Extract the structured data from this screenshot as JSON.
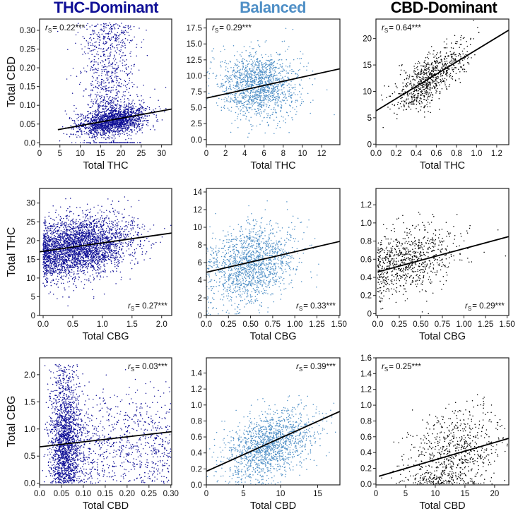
{
  "column_titles": [
    {
      "label": "THC-Dominant",
      "color": "#0f0f96"
    },
    {
      "label": "Balanced",
      "color": "#4f8fc6"
    },
    {
      "label": "CBD-Dominant",
      "color": "#000000"
    }
  ],
  "row_labels": [
    "Total CBD",
    "Total THC",
    "Total CBG"
  ],
  "stat_symbol": "r",
  "stat_subscript": "S",
  "chart_data": [
    {
      "type": "scatter",
      "row": 0,
      "col": 0,
      "xlabel": "Total THC",
      "ylabel": "Total CBD",
      "xlim": [
        0,
        32.5
      ],
      "ylim": [
        -0.005,
        0.33
      ],
      "xticks": [
        "0",
        "5",
        "10",
        "15",
        "20",
        "25",
        "30"
      ],
      "yticks": [
        "0.0",
        "0.05",
        "0.10",
        "0.15",
        "0.20",
        "0.25",
        "0.30"
      ],
      "annotation": "= 0.22***",
      "annotation_position": "top-left",
      "fit_line": [
        [
          4.5,
          0.035
        ],
        [
          32.5,
          0.09
        ]
      ],
      "cloud": {
        "n": 2600,
        "kind": "thc_cbd"
      }
    },
    {
      "type": "scatter",
      "row": 0,
      "col": 1,
      "xlabel": "Total THC",
      "ylabel": "Total CBD",
      "xlim": [
        0,
        13.9
      ],
      "ylim": [
        -0.8,
        18.9
      ],
      "xticks": [
        "0",
        "2",
        "4",
        "6",
        "8",
        "10",
        "12"
      ],
      "yticks": [
        "0.0",
        "2.5",
        "5.0",
        "7.5",
        "10.0",
        "12.5",
        "15.0",
        "17.5"
      ],
      "annotation": "= 0.29***",
      "annotation_position": "top-left",
      "fit_line": [
        [
          0,
          6.5
        ],
        [
          13.9,
          11.1
        ]
      ],
      "cloud": {
        "n": 1500,
        "x_center": 5.5,
        "x_spread": 2.0,
        "y_center": 8.5,
        "y_spread": 2.6
      }
    },
    {
      "type": "scatter",
      "row": 0,
      "col": 2,
      "xlabel": "Total THC",
      "ylabel": "Total CBD",
      "xlim": [
        0,
        1.32
      ],
      "ylim": [
        -0.1,
        23.7
      ],
      "xticks": [
        "0.0",
        "0.2",
        "0.4",
        "0.6",
        "0.8",
        "1.0",
        "1.2"
      ],
      "yticks": [
        "0",
        "5",
        "10",
        "15",
        "20"
      ],
      "annotation": "= 0.64***",
      "annotation_position": "top-left",
      "fit_line": [
        [
          0,
          6.3
        ],
        [
          1.32,
          21.6
        ]
      ],
      "cloud": {
        "n": 800,
        "x_center": 0.55,
        "x_spread": 0.18,
        "y_center": 12.7,
        "y_spread": 2.2,
        "slope": 11.6
      }
    },
    {
      "type": "scatter",
      "row": 1,
      "col": 0,
      "xlabel": "Total CBG",
      "ylabel": "Total THC",
      "xlim": [
        -0.06,
        2.17
      ],
      "ylim": [
        0,
        33.9
      ],
      "xticks": [
        "0.0",
        "0.5",
        "1.0",
        "1.5",
        "2.0"
      ],
      "yticks": [
        "0",
        "5",
        "10",
        "15",
        "20",
        "25",
        "30"
      ],
      "annotation": "= 0.27***",
      "annotation_position": "bottom-right",
      "fit_line": [
        [
          -0.06,
          17
        ],
        [
          2.17,
          22
        ]
      ],
      "cloud": {
        "n": 3200,
        "x_center": 0.6,
        "x_spread": 0.45,
        "y_center": 18.3,
        "y_spread": 4.0,
        "slope": 2.2
      }
    },
    {
      "type": "scatter",
      "row": 1,
      "col": 1,
      "xlabel": "Total CBG",
      "ylabel": "Total THC",
      "xlim": [
        0,
        1.51
      ],
      "ylim": [
        0,
        14.4
      ],
      "xticks": [
        "0.0",
        "0.25",
        "0.50",
        "0.75",
        "1.00",
        "1.25",
        "1.50"
      ],
      "yticks": [
        "0",
        "2",
        "4",
        "6",
        "8",
        "10",
        "12",
        "14"
      ],
      "annotation": "= 0.33***",
      "annotation_position": "bottom-right",
      "fit_line": [
        [
          0,
          4.9
        ],
        [
          1.51,
          8.4
        ]
      ],
      "cloud": {
        "n": 1500,
        "x_center": 0.5,
        "x_spread": 0.25,
        "y_center": 5.8,
        "y_spread": 2.2,
        "slope": 2.0
      }
    },
    {
      "type": "scatter",
      "row": 1,
      "col": 2,
      "xlabel": "Total CBG",
      "ylabel": "Total THC",
      "xlim": [
        -0.02,
        1.52
      ],
      "ylim": [
        -0.02,
        1.38
      ],
      "xticks": [
        "0.0",
        "0.25",
        "0.50",
        "0.75",
        "1.00",
        "1.25",
        "1.50"
      ],
      "yticks": [
        "0",
        "0.2",
        "0.4",
        "0.6",
        "0.8",
        "1.0",
        "1.2"
      ],
      "annotation": "= 0.29***",
      "annotation_position": "bottom-right",
      "fit_line": [
        [
          0,
          0.46
        ],
        [
          1.52,
          0.85
        ]
      ],
      "cloud": {
        "n": 800,
        "x_center": 0.35,
        "x_spread": 0.3,
        "y_center": 0.58,
        "y_spread": 0.18,
        "slope": 0.2
      }
    },
    {
      "type": "scatter",
      "row": 2,
      "col": 0,
      "xlabel": "Total CBD",
      "ylabel": "Total CBG",
      "xlim": [
        0,
        0.302
      ],
      "ylim": [
        -0.03,
        2.31
      ],
      "xticks": [
        "0.0",
        "0.05",
        "0.10",
        "0.15",
        "0.20",
        "0.25",
        "0.30"
      ],
      "yticks": [
        "0.0",
        "0.5",
        "1.0",
        "1.5",
        "2.0"
      ],
      "annotation": "= 0.03***",
      "annotation_position": "top-right",
      "fit_line": [
        [
          0,
          0.67
        ],
        [
          0.302,
          0.95
        ]
      ],
      "cloud": {
        "n": 2600,
        "kind": "cbd_cbg"
      }
    },
    {
      "type": "scatter",
      "row": 2,
      "col": 1,
      "xlabel": "Total CBD",
      "ylabel": "Total CBG",
      "xlim": [
        0,
        18
      ],
      "ylim": [
        0,
        1.59
      ],
      "xticks": [
        "0",
        "5",
        "10",
        "15"
      ],
      "yticks": [
        "0.0",
        "0.2",
        "0.4",
        "0.6",
        "0.8",
        "1.0",
        "1.2",
        "1.4"
      ],
      "annotation": "= 0.39***",
      "annotation_position": "top-right",
      "fit_line": [
        [
          0,
          0.17
        ],
        [
          18,
          0.92
        ]
      ],
      "cloud": {
        "n": 1500,
        "x_center": 8.5,
        "x_spread": 3.0,
        "y_center": 0.5,
        "y_spread": 0.2,
        "slope": 0.03
      }
    },
    {
      "type": "scatter",
      "row": 2,
      "col": 2,
      "xlabel": "Total CBD",
      "ylabel": "Total CBG",
      "xlim": [
        0,
        22.4
      ],
      "ylim": [
        -0.01,
        1.6
      ],
      "xticks": [
        "0",
        "5",
        "10",
        "15",
        "20"
      ],
      "yticks": [
        "0.0",
        "0.2",
        "0.4",
        "0.6",
        "0.8",
        "1.0",
        "1.2",
        "1.4",
        "1.6"
      ],
      "annotation": "= 0.25***",
      "annotation_position": "top-left",
      "fit_line": [
        [
          0.5,
          0.1
        ],
        [
          22.4,
          0.58
        ]
      ],
      "cloud": {
        "n": 800,
        "x_center": 13,
        "x_spread": 4,
        "y_center": 0.35,
        "y_spread": 0.3,
        "slope": 0.02
      }
    }
  ]
}
